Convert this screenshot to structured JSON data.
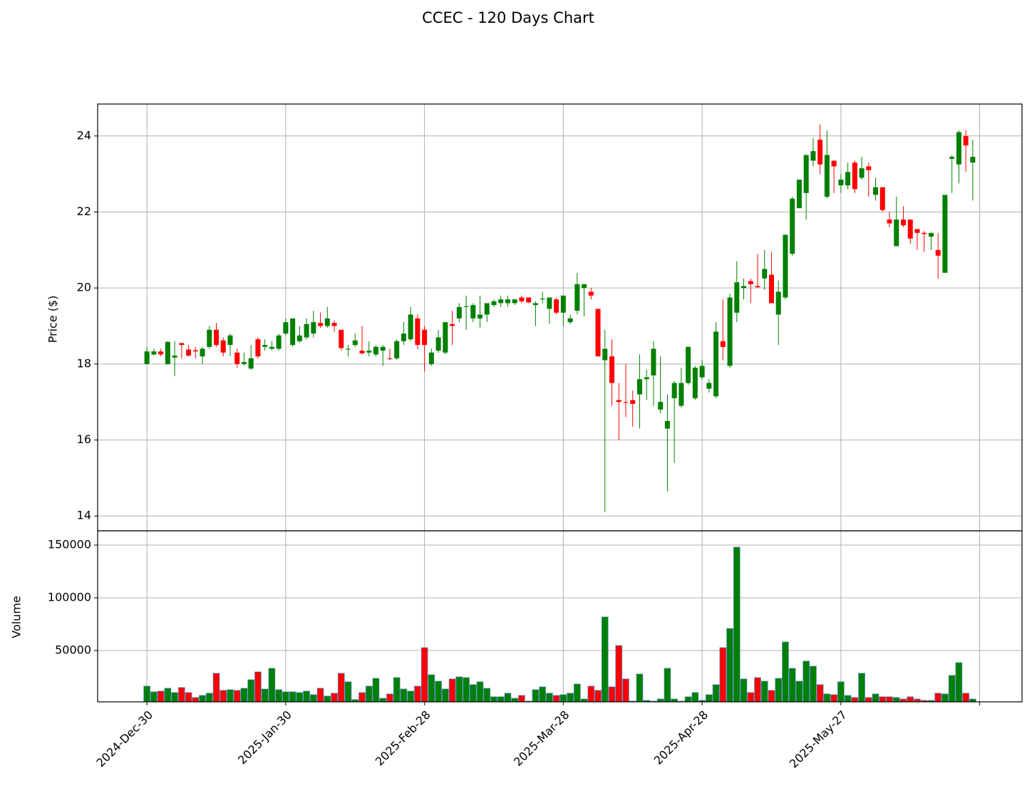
{
  "chart_data": [
    {
      "type": "candlestick",
      "title": "CCEC - 120 Days Chart",
      "ylabel": "Price ($)",
      "categories": [
        "2024-Dec-30",
        null,
        null,
        null,
        null,
        null,
        null,
        null,
        null,
        null,
        null,
        null,
        null,
        null,
        null,
        null,
        null,
        null,
        null,
        null,
        "2025-Jan-30",
        null,
        null,
        null,
        null,
        null,
        null,
        null,
        null,
        null,
        null,
        null,
        null,
        null,
        null,
        null,
        null,
        null,
        null,
        null,
        "2025-Feb-28",
        null,
        null,
        null,
        null,
        null,
        null,
        null,
        null,
        null,
        null,
        null,
        null,
        null,
        null,
        null,
        null,
        null,
        null,
        null,
        "2025-Mar-28",
        null,
        null,
        null,
        null,
        null,
        null,
        null,
        null,
        null,
        null,
        null,
        null,
        null,
        null,
        null,
        null,
        null,
        null,
        null,
        "2025-Apr-28",
        null,
        null,
        null,
        null,
        null,
        null,
        null,
        null,
        null,
        null,
        null,
        null,
        null,
        null,
        null,
        null,
        null,
        null,
        null,
        "2025-May-27",
        null,
        null,
        null,
        null,
        null,
        null,
        null,
        null,
        null,
        null,
        null,
        null,
        null,
        null,
        null,
        null,
        null,
        null,
        null
      ],
      "open": [
        18.0,
        18.25,
        18.33,
        18.0,
        18.17,
        18.55,
        18.38,
        18.36,
        18.2,
        18.45,
        18.9,
        18.62,
        18.5,
        18.3,
        18.0,
        17.88,
        18.65,
        18.45,
        18.4,
        18.4,
        18.8,
        18.5,
        18.6,
        18.7,
        18.8,
        19.08,
        19.0,
        19.08,
        18.9,
        18.38,
        18.5,
        18.35,
        18.3,
        18.25,
        18.35,
        18.15,
        18.15,
        18.6,
        18.65,
        19.2,
        18.9,
        18.0,
        18.35,
        18.3,
        19.05,
        19.2,
        19.5,
        19.2,
        19.2,
        19.3,
        19.55,
        19.6,
        19.6,
        19.6,
        19.75,
        19.75,
        19.55,
        19.7,
        19.45,
        19.7,
        19.35,
        19.1,
        19.4,
        20.0,
        19.9,
        19.45,
        18.1,
        18.2,
        17.05,
        17.0,
        17.05,
        17.2,
        17.6,
        17.7,
        16.8,
        16.3,
        17.1,
        16.9,
        17.5,
        17.1,
        17.65,
        17.35,
        17.15,
        18.6,
        17.95,
        19.35,
        20.0,
        20.18,
        20.05,
        20.25,
        20.35,
        19.3,
        19.75,
        20.9,
        22.1,
        22.5,
        23.35,
        23.9,
        22.4,
        23.35,
        22.7,
        22.7,
        23.3,
        22.9,
        23.2,
        22.45,
        22.65,
        21.8,
        21.1,
        21.8,
        21.8,
        21.55,
        21.45,
        21.35,
        21.0,
        20.4,
        23.4,
        23.25,
        24.0,
        23.3
      ],
      "high": [
        18.45,
        18.4,
        18.4,
        18.6,
        18.6,
        18.55,
        18.5,
        18.45,
        18.45,
        19.0,
        19.08,
        18.7,
        18.8,
        18.4,
        18.3,
        18.5,
        18.7,
        18.65,
        18.6,
        18.8,
        19.2,
        19.2,
        19.0,
        19.2,
        19.4,
        19.35,
        19.5,
        19.15,
        18.9,
        18.5,
        18.8,
        19.0,
        18.6,
        18.5,
        18.5,
        18.4,
        18.65,
        19.1,
        19.5,
        19.3,
        19.0,
        18.4,
        18.9,
        19.1,
        19.4,
        19.6,
        19.8,
        19.6,
        19.8,
        19.6,
        19.7,
        19.8,
        19.8,
        19.7,
        19.8,
        19.75,
        19.65,
        19.9,
        19.75,
        19.75,
        19.8,
        19.3,
        20.4,
        20.1,
        20.0,
        19.45,
        18.9,
        18.65,
        17.5,
        18.0,
        17.3,
        18.25,
        17.85,
        18.6,
        18.2,
        17.2,
        17.55,
        17.9,
        18.45,
        17.95,
        18.1,
        17.6,
        19.1,
        19.7,
        19.85,
        20.7,
        20.25,
        20.25,
        20.9,
        21.0,
        20.95,
        20.2,
        21.4,
        22.4,
        22.85,
        23.5,
        23.95,
        24.3,
        24.15,
        23.35,
        23.0,
        23.3,
        23.35,
        23.45,
        23.3,
        22.9,
        22.65,
        22.0,
        22.4,
        22.15,
        21.8,
        21.55,
        21.5,
        21.45,
        21.45,
        22.45,
        23.5,
        24.15,
        24.15,
        23.9
      ],
      "low": [
        17.98,
        18.22,
        18.2,
        17.98,
        17.68,
        18.15,
        18.2,
        18.15,
        18.0,
        18.4,
        18.45,
        18.2,
        18.2,
        17.9,
        17.95,
        17.85,
        18.15,
        18.35,
        18.35,
        18.35,
        18.75,
        18.45,
        18.55,
        18.65,
        18.7,
        18.95,
        18.95,
        18.85,
        18.35,
        18.2,
        18.45,
        18.25,
        18.2,
        18.2,
        17.95,
        18.1,
        18.1,
        18.5,
        18.6,
        18.4,
        17.8,
        17.95,
        18.3,
        18.25,
        18.5,
        19.1,
        18.9,
        19.1,
        18.95,
        19.1,
        19.5,
        19.5,
        19.5,
        19.55,
        19.6,
        19.6,
        19.0,
        19.6,
        19.05,
        19.3,
        19.0,
        19.05,
        19.3,
        19.25,
        19.7,
        18.2,
        14.1,
        16.9,
        16.0,
        16.6,
        16.35,
        16.3,
        17.05,
        16.9,
        16.7,
        14.65,
        15.4,
        16.85,
        17.45,
        17.05,
        17.6,
        17.25,
        17.1,
        18.1,
        17.9,
        19.1,
        19.7,
        19.6,
        20.0,
        19.95,
        19.6,
        18.5,
        19.7,
        20.85,
        22.1,
        21.8,
        23.2,
        23.0,
        22.35,
        22.5,
        22.5,
        22.6,
        22.5,
        22.85,
        22.4,
        22.3,
        22.0,
        21.6,
        21.1,
        21.6,
        21.15,
        21.0,
        20.95,
        21.0,
        20.25,
        20.4,
        22.5,
        22.75,
        23.05,
        22.3
      ],
      "close": [
        18.33,
        18.33,
        18.25,
        18.58,
        18.22,
        18.5,
        18.22,
        18.33,
        18.4,
        18.9,
        18.5,
        18.3,
        18.75,
        18.0,
        18.05,
        18.15,
        18.2,
        18.5,
        18.45,
        18.75,
        19.1,
        19.2,
        18.75,
        19.05,
        19.1,
        19.0,
        19.2,
        19.0,
        18.42,
        18.4,
        18.62,
        18.28,
        18.35,
        18.45,
        18.45,
        18.13,
        18.6,
        18.8,
        19.3,
        18.5,
        18.5,
        18.3,
        18.7,
        19.1,
        19.0,
        19.5,
        19.52,
        19.55,
        19.3,
        19.6,
        19.65,
        19.7,
        19.7,
        19.7,
        19.65,
        19.62,
        19.6,
        19.72,
        19.75,
        19.35,
        19.8,
        19.2,
        20.1,
        20.1,
        19.8,
        18.2,
        18.4,
        17.5,
        17.0,
        16.98,
        16.95,
        17.6,
        17.65,
        18.4,
        17.0,
        16.5,
        17.5,
        17.5,
        18.45,
        17.9,
        17.95,
        17.5,
        18.85,
        18.45,
        19.75,
        20.15,
        20.05,
        20.1,
        20.02,
        20.5,
        19.6,
        19.9,
        21.4,
        22.35,
        22.85,
        23.5,
        23.6,
        23.25,
        23.5,
        23.2,
        22.85,
        23.05,
        22.6,
        23.15,
        23.1,
        22.65,
        22.05,
        21.7,
        21.8,
        21.65,
        21.3,
        21.45,
        21.42,
        21.45,
        20.85,
        22.45,
        23.45,
        24.1,
        23.75,
        23.45
      ],
      "up_color": "#008000",
      "down_color": "#ff0000",
      "xlim": [
        -7.1,
        126.1
      ],
      "xticks": [
        0,
        20,
        40,
        60,
        80,
        100,
        120
      ],
      "ylim": [
        13.61,
        24.84
      ],
      "yticks": [
        14,
        16,
        18,
        20,
        22,
        24
      ],
      "grid": true
    },
    {
      "type": "bar",
      "ylabel": "Volume",
      "values": [
        16200,
        10800,
        11500,
        14200,
        10100,
        14900,
        10100,
        5400,
        7400,
        9500,
        28400,
        12200,
        12800,
        12200,
        14200,
        22300,
        29700,
        13500,
        33100,
        12800,
        10800,
        10800,
        10100,
        11500,
        8100,
        14200,
        6800,
        9500,
        28400,
        20300,
        3400,
        10100,
        16200,
        23600,
        4700,
        8800,
        24300,
        13500,
        11500,
        16200,
        52700,
        27000,
        20900,
        13500,
        23000,
        25000,
        24300,
        17600,
        20300,
        14200,
        6100,
        6100,
        9500,
        4700,
        7400,
        2000,
        12800,
        15500,
        9500,
        7400,
        8100,
        9500,
        18200,
        4000,
        16200,
        12200,
        81800,
        15500,
        54700,
        23000,
        2000,
        27700,
        2700,
        2000,
        4000,
        33100,
        4000,
        2000,
        6100,
        10100,
        2700,
        8100,
        17600,
        52700,
        70900,
        148000,
        23000,
        10100,
        24300,
        20900,
        12200,
        23600,
        58100,
        33100,
        20900,
        39900,
        35100,
        17600,
        8800,
        8100,
        20300,
        7400,
        5400,
        28400,
        5400,
        8800,
        6100,
        6100,
        5400,
        4000,
        6100,
        4000,
        2700,
        2700,
        9500,
        8800,
        26400,
        38500,
        9500,
        4000
      ],
      "edge_color": "#4a7fb0",
      "ylim": [
        1350,
        163500
      ],
      "yticks": [
        50000,
        100000,
        150000
      ],
      "grid": true
    }
  ]
}
